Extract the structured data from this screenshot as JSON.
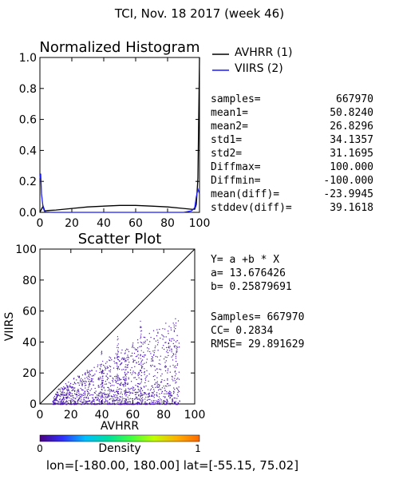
{
  "page_title": "TCI,  Nov. 18 2017 (week 46)",
  "footer": "lon=[-180.00, 180.00] lat=[-55.15, 75.02]",
  "colors": {
    "avhrr": "#000000",
    "viirs": "#1a1aff",
    "scatter": "#4a1ab0"
  },
  "histogram": {
    "legend": [
      {
        "label": "AVHRR (1)",
        "color": "#000000"
      },
      {
        "label": "VIIRS (2)",
        "color": "#1a1aff"
      }
    ],
    "stats": [
      {
        "label": "samples=",
        "value": "667970"
      },
      {
        "label": "mean1=",
        "value": "50.8240"
      },
      {
        "label": "mean2=",
        "value": "26.8296"
      },
      {
        "label": "std1=",
        "value": "34.1357"
      },
      {
        "label": "std2=",
        "value": "31.1695"
      },
      {
        "label": "Diffmax=",
        "value": "100.000"
      },
      {
        "label": "Diffmin=",
        "value": "-100.000"
      },
      {
        "label": "mean(diff)=",
        "value": "-23.9945"
      },
      {
        "label": "stddev(diff)=",
        "value": "39.1618"
      }
    ]
  },
  "scatter": {
    "equation": "Y= a +b * X",
    "a_line": "a= 13.676426",
    "b_line": "b= 0.25879691",
    "samples_line": "Samples= 667970",
    "cc_line": "CC=  0.2834",
    "rmse_line": "RMSE= 29.891629"
  },
  "colorbar": {
    "label": "Density",
    "min_label": "0",
    "max_label": "1",
    "stops": [
      "#4b0082",
      "#3030ff",
      "#00bfff",
      "#00e0a0",
      "#40ff40",
      "#c0ff00",
      "#ffb000",
      "#ff6a00"
    ]
  },
  "chart_data": [
    {
      "type": "line",
      "title": "Normalized Histogram",
      "xlim": [
        0,
        100
      ],
      "ylim": [
        0,
        1.0
      ],
      "xticks": [
        0,
        20,
        40,
        60,
        80,
        100
      ],
      "yticks": [
        0.0,
        0.2,
        0.4,
        0.6,
        0.8,
        1.0
      ],
      "ytick_labels": [
        "0.0",
        "0.2",
        "0.4",
        "0.6",
        "0.8",
        "1.0"
      ],
      "series": [
        {
          "name": "AVHRR (1)",
          "x": [
            0,
            1,
            2,
            3,
            5,
            10,
            20,
            30,
            40,
            50,
            60,
            70,
            80,
            90,
            95,
            97,
            98,
            99,
            100
          ],
          "y": [
            0.0,
            0.02,
            0.04,
            0.01,
            0.012,
            0.015,
            0.025,
            0.035,
            0.04,
            0.045,
            0.045,
            0.04,
            0.035,
            0.025,
            0.02,
            0.02,
            0.05,
            0.22,
            1.0
          ]
        },
        {
          "name": "VIIRS (2)",
          "x": [
            0,
            0.5,
            1,
            2,
            3,
            4,
            6,
            10,
            20,
            30,
            40,
            50,
            60,
            70,
            80,
            90,
            95,
            97,
            98,
            99,
            100
          ],
          "y": [
            0.22,
            0.25,
            0.12,
            0.03,
            0.005,
            0.002,
            0.001,
            0.0,
            0.0,
            0.0,
            0.0,
            0.0,
            0.0,
            0.0,
            0.0,
            0.0,
            0.01,
            0.03,
            0.1,
            0.15,
            0.12
          ]
        }
      ]
    },
    {
      "type": "scatter",
      "title": "Scatter Plot",
      "xlabel": "AVHRR",
      "ylabel": "VIIRS",
      "xlim": [
        0,
        100
      ],
      "ylim": [
        0,
        100
      ],
      "xticks": [
        0,
        20,
        40,
        60,
        80,
        100
      ],
      "yticks": [
        0,
        20,
        40,
        60,
        80,
        100
      ],
      "fit": {
        "a": 13.676426,
        "b": 0.25879691
      },
      "samples": 667970,
      "cc": 0.2834,
      "rmse": 29.891629
    }
  ]
}
